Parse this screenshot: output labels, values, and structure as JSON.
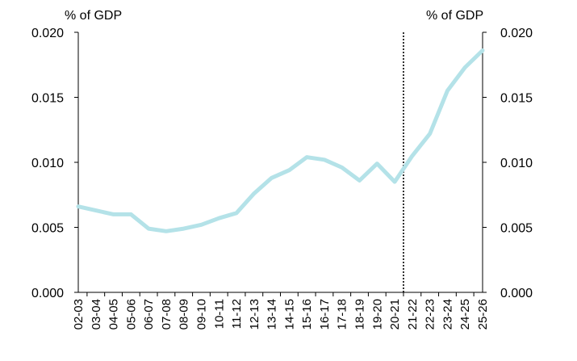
{
  "chart_data": {
    "type": "line",
    "title": "",
    "xlabel": "",
    "ylabel": "",
    "y_unit_left": "% of GDP",
    "y_unit_right": "% of GDP",
    "ylim": [
      0,
      0.02
    ],
    "yticks": [
      "0.000",
      "0.005",
      "0.010",
      "0.015",
      "0.020"
    ],
    "ytick_values": [
      0,
      0.005,
      0.01,
      0.015,
      0.02
    ],
    "categories": [
      "02-03",
      "03-04",
      "04-05",
      "05-06",
      "06-07",
      "07-08",
      "08-09",
      "09-10",
      "10-11",
      "11-12",
      "12-13",
      "13-14",
      "14-15",
      "15-16",
      "16-17",
      "17-18",
      "18-19",
      "19-20",
      "20-21",
      "21-22",
      "22-23",
      "23-24",
      "24-25",
      "25-26"
    ],
    "series": [
      {
        "values": [
          0.0066,
          0.0063,
          0.006,
          0.006,
          0.0049,
          0.0047,
          0.0049,
          0.0052,
          0.0057,
          0.0061,
          0.0076,
          0.0088,
          0.0094,
          0.0104,
          0.0102,
          0.0096,
          0.0086,
          0.0099,
          0.0085,
          0.0105,
          0.0122,
          0.0155,
          0.0173,
          0.0186
        ],
        "color": "#b4e2e8"
      }
    ],
    "divider_after_category": "20-21",
    "divider_color": "#000000",
    "grid": false,
    "legend": "none"
  }
}
